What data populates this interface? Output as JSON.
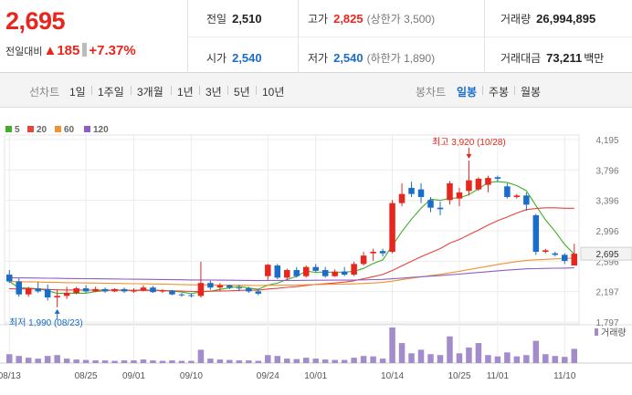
{
  "quote": {
    "current_price": "2,695",
    "change_label": "전일대비",
    "change_arrow": "▲",
    "change_amount": "185",
    "change_rate": "+7.37%"
  },
  "stats": {
    "prev_close_label": "전일",
    "prev_close": "2,510",
    "high_label": "고가",
    "high": "2,825",
    "upper_limit": "(상한가 3,500)",
    "volume_label": "거래량",
    "volume": "26,994,895",
    "open_label": "시가",
    "open": "2,540",
    "low_label": "저가",
    "low": "2,540",
    "lower_limit": "(하한가 1,890)",
    "amount_label": "거래대금",
    "amount": "73,211",
    "amount_unit": "백만"
  },
  "periods": {
    "header": "선차트",
    "items": [
      "1일",
      "1주일",
      "3개월",
      "1년",
      "3년",
      "5년",
      "10년"
    ]
  },
  "candle_tabs": {
    "header": "봉차트",
    "items": [
      "일봉",
      "주봉",
      "월봉"
    ],
    "active": "일봉"
  },
  "colors": {
    "up": "#e8261d",
    "down": "#1a6dc8",
    "ma5": "#3fae2a",
    "ma20": "#e8443a",
    "ma60": "#f0922e",
    "ma120": "#8f5dc4",
    "volume_bar": "#a38ccb"
  },
  "chart_data": {
    "type": "candlestick",
    "legend": [
      "5",
      "20",
      "60",
      "120"
    ],
    "y_ticks": [
      "4,195",
      "3,796",
      "3,396",
      "2,996",
      "2,596",
      "2,197",
      "1,797"
    ],
    "y_tick_values": [
      4195,
      3796,
      3396,
      2996,
      2596,
      2197,
      1797
    ],
    "ylim": [
      1797,
      4195
    ],
    "x_labels": [
      "08/13",
      "08/25",
      "09/01",
      "09/10",
      "09/24",
      "10/01",
      "10/14",
      "10/25",
      "11/01",
      "11/10"
    ],
    "x_label_index": [
      0,
      8,
      13,
      19,
      27,
      32,
      40,
      47,
      51,
      58
    ],
    "current_price_label": "2,695",
    "current_price_value": 2695,
    "volume_label": "거래량",
    "high_annotation": "최고 3,920 (10/28)",
    "high_annotation_index": 48,
    "low_annotation": "최저 1,990 (08/23)",
    "low_annotation_index": 5,
    "candles": [
      {
        "o": 2420,
        "h": 2480,
        "l": 2310,
        "c": 2330
      },
      {
        "o": 2330,
        "h": 2370,
        "l": 2130,
        "c": 2160
      },
      {
        "o": 2160,
        "h": 2260,
        "l": 2130,
        "c": 2240
      },
      {
        "o": 2240,
        "h": 2320,
        "l": 2180,
        "c": 2200
      },
      {
        "o": 2230,
        "h": 2290,
        "l": 2080,
        "c": 2120
      },
      {
        "o": 2120,
        "h": 2220,
        "l": 1990,
        "c": 2140
      },
      {
        "o": 2140,
        "h": 2260,
        "l": 2100,
        "c": 2180
      },
      {
        "o": 2180,
        "h": 2260,
        "l": 2160,
        "c": 2240
      },
      {
        "o": 2240,
        "h": 2280,
        "l": 2180,
        "c": 2200
      },
      {
        "o": 2200,
        "h": 2260,
        "l": 2190,
        "c": 2230
      },
      {
        "o": 2230,
        "h": 2250,
        "l": 2180,
        "c": 2200
      },
      {
        "o": 2200,
        "h": 2240,
        "l": 2190,
        "c": 2230
      },
      {
        "o": 2230,
        "h": 2250,
        "l": 2180,
        "c": 2200
      },
      {
        "o": 2200,
        "h": 2240,
        "l": 2180,
        "c": 2210
      },
      {
        "o": 2210,
        "h": 2280,
        "l": 2200,
        "c": 2250
      },
      {
        "o": 2250,
        "h": 2270,
        "l": 2180,
        "c": 2190
      },
      {
        "o": 2200,
        "h": 2230,
        "l": 2180,
        "c": 2210
      },
      {
        "o": 2210,
        "h": 2220,
        "l": 2150,
        "c": 2160
      },
      {
        "o": 2160,
        "h": 2180,
        "l": 2130,
        "c": 2150
      },
      {
        "o": 2150,
        "h": 2170,
        "l": 2120,
        "c": 2140
      },
      {
        "o": 2140,
        "h": 2590,
        "l": 2120,
        "c": 2310
      },
      {
        "o": 2310,
        "h": 2340,
        "l": 2220,
        "c": 2250
      },
      {
        "o": 2250,
        "h": 2310,
        "l": 2200,
        "c": 2280
      },
      {
        "o": 2280,
        "h": 2290,
        "l": 2230,
        "c": 2250
      },
      {
        "o": 2250,
        "h": 2280,
        "l": 2200,
        "c": 2240
      },
      {
        "o": 2240,
        "h": 2260,
        "l": 2180,
        "c": 2200
      },
      {
        "o": 2200,
        "h": 2230,
        "l": 2150,
        "c": 2170
      },
      {
        "o": 2400,
        "h": 2560,
        "l": 2350,
        "c": 2550
      },
      {
        "o": 2540,
        "h": 2560,
        "l": 2360,
        "c": 2380
      },
      {
        "o": 2380,
        "h": 2500,
        "l": 2350,
        "c": 2480
      },
      {
        "o": 2480,
        "h": 2520,
        "l": 2380,
        "c": 2400
      },
      {
        "o": 2400,
        "h": 2540,
        "l": 2380,
        "c": 2520
      },
      {
        "o": 2520,
        "h": 2560,
        "l": 2450,
        "c": 2470
      },
      {
        "o": 2480,
        "h": 2520,
        "l": 2380,
        "c": 2400
      },
      {
        "o": 2400,
        "h": 2490,
        "l": 2390,
        "c": 2460
      },
      {
        "o": 2460,
        "h": 2520,
        "l": 2400,
        "c": 2420
      },
      {
        "o": 2420,
        "h": 2590,
        "l": 2400,
        "c": 2560
      },
      {
        "o": 2560,
        "h": 2720,
        "l": 2540,
        "c": 2670
      },
      {
        "o": 2700,
        "h": 2760,
        "l": 2600,
        "c": 2720
      },
      {
        "o": 2730,
        "h": 2760,
        "l": 2660,
        "c": 2700
      },
      {
        "o": 2720,
        "h": 3400,
        "l": 2700,
        "c": 3360
      },
      {
        "o": 3360,
        "h": 3620,
        "l": 3320,
        "c": 3480
      },
      {
        "o": 3560,
        "h": 3640,
        "l": 3440,
        "c": 3480
      },
      {
        "o": 3540,
        "h": 3620,
        "l": 3360,
        "c": 3440
      },
      {
        "o": 3400,
        "h": 3440,
        "l": 3240,
        "c": 3300
      },
      {
        "o": 3300,
        "h": 3380,
        "l": 3200,
        "c": 3280
      },
      {
        "o": 3400,
        "h": 3650,
        "l": 3340,
        "c": 3620
      },
      {
        "o": 3420,
        "h": 3560,
        "l": 3320,
        "c": 3500
      },
      {
        "o": 3520,
        "h": 3920,
        "l": 3460,
        "c": 3660
      },
      {
        "o": 3540,
        "h": 3700,
        "l": 3520,
        "c": 3680
      },
      {
        "o": 3600,
        "h": 3720,
        "l": 3500,
        "c": 3690
      },
      {
        "o": 3700,
        "h": 3720,
        "l": 3640,
        "c": 3680
      },
      {
        "o": 3580,
        "h": 3620,
        "l": 3420,
        "c": 3440
      },
      {
        "o": 3440,
        "h": 3480,
        "l": 3420,
        "c": 3460
      },
      {
        "o": 3460,
        "h": 3500,
        "l": 3260,
        "c": 3340
      },
      {
        "o": 3200,
        "h": 3220,
        "l": 2680,
        "c": 2720
      },
      {
        "o": 2720,
        "h": 2760,
        "l": 2700,
        "c": 2740
      },
      {
        "o": 2700,
        "h": 2720,
        "l": 2660,
        "c": 2680
      },
      {
        "o": 2680,
        "h": 2700,
        "l": 2560,
        "c": 2600
      },
      {
        "o": 2540,
        "h": 2825,
        "l": 2540,
        "c": 2695
      }
    ],
    "volume": [
      20,
      16,
      12,
      10,
      16,
      18,
      10,
      8,
      7,
      6,
      6,
      5,
      6,
      6,
      8,
      6,
      5,
      6,
      5,
      5,
      30,
      10,
      8,
      7,
      6,
      6,
      5,
      18,
      16,
      10,
      9,
      12,
      10,
      8,
      7,
      7,
      12,
      16,
      15,
      10,
      80,
      45,
      22,
      30,
      20,
      18,
      60,
      22,
      35,
      45,
      18,
      15,
      24,
      15,
      18,
      50,
      20,
      16,
      14,
      32
    ]
  }
}
